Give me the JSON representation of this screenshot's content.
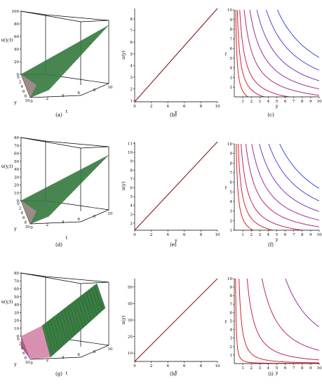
{
  "chart_data": [
    {
      "panel": "(a)",
      "type": "surface3d",
      "zlabel": "u(y,t)",
      "xlabel": "y",
      "ylabel": "t",
      "ticks": {
        "u": [
          0,
          20,
          40,
          60,
          80,
          100
        ],
        "y": [
          0,
          2,
          4,
          6,
          8,
          10
        ],
        "t": [
          0,
          2,
          4,
          6,
          8,
          10
        ]
      },
      "colors": {
        "mesh_dark": "#2a2a2a",
        "mesh_light": "#c8a0a0",
        "fill_green": "#3b8a46",
        "fill_pink": "#d890b0"
      }
    },
    {
      "panel": "(b)",
      "type": "line",
      "xlabel": "y",
      "ylabel": "u(y)",
      "xlim": [
        0,
        10
      ],
      "ylim": [
        0.9,
        8.9
      ],
      "xticks": [
        0,
        2,
        4,
        6,
        8,
        10
      ],
      "yticks": [
        1,
        2,
        3,
        4,
        5,
        6,
        7,
        8
      ],
      "x": [
        0,
        10
      ],
      "y": [
        0.9,
        8.9
      ],
      "color": "#8b1a1a"
    },
    {
      "panel": "(c)",
      "type": "contour",
      "xlabel": "y",
      "ylabel": "t",
      "xlim": [
        0,
        10
      ],
      "ylim": [
        1,
        10
      ],
      "xticks": [
        1,
        2,
        3,
        4,
        5,
        6,
        7,
        8,
        9,
        10
      ],
      "yticks": [
        2,
        3,
        4,
        5,
        6,
        7,
        8,
        9,
        10
      ],
      "levels": [
        1.6,
        3.5,
        6.4,
        11.6,
        18.2,
        26.6,
        37.5,
        50.7
      ],
      "power": 1,
      "colors": [
        "#e81c1c",
        "#d91d3c",
        "#c8205c",
        "#b4287d",
        "#9a2fa0",
        "#7e37bd",
        "#6040d4",
        "#3a4ae6"
      ]
    },
    {
      "panel": "(d)",
      "type": "surface3d",
      "zlabel": "u(y,t)",
      "xlabel": "y",
      "ylabel": "t",
      "ticks": {
        "u": [
          0,
          10,
          20,
          30,
          40,
          50,
          60,
          70,
          80
        ],
        "y": [
          0,
          2,
          4,
          6,
          8,
          10
        ],
        "t": [
          0,
          2,
          4,
          6,
          8,
          10
        ]
      },
      "colors": {
        "mesh_dark": "#2a2a2a",
        "mesh_light": "#c8a0a0",
        "fill_green": "#3b8a46",
        "fill_pink": "#d890b0"
      }
    },
    {
      "panel": "(e)",
      "type": "line",
      "xlabel": "y",
      "ylabel": "u(y)",
      "xlim": [
        0,
        10
      ],
      "ylim": [
        1.2,
        11.2
      ],
      "xticks": [
        0,
        2,
        4,
        6,
        8,
        10
      ],
      "yticks": [
        2,
        3,
        4,
        5,
        6,
        7,
        8,
        9,
        10,
        11
      ],
      "x": [
        0,
        10
      ],
      "y": [
        1.2,
        11.2
      ],
      "color": "#8b1a1a"
    },
    {
      "panel": "(f)",
      "type": "contour",
      "xlabel": "y",
      "ylabel": "t",
      "xlim": [
        0,
        10
      ],
      "ylim": [
        1,
        10
      ],
      "xticks": [
        1,
        2,
        3,
        4,
        5,
        6,
        7,
        8,
        9,
        10
      ],
      "yticks": [
        1,
        2,
        3,
        4,
        5,
        6,
        7,
        8,
        9,
        10
      ],
      "levels": [
        2.2,
        4.5,
        8,
        13.5,
        20.5,
        29.5,
        40.5,
        53.5
      ],
      "power": 1,
      "colors": [
        "#e81c1c",
        "#d91d3c",
        "#c8205c",
        "#b4287d",
        "#9a2fa0",
        "#7e37bd",
        "#6040d4",
        "#3a4ae6"
      ]
    },
    {
      "panel": "(g)",
      "type": "surface3d",
      "zlabel": "u(y,t)",
      "xlabel": "y",
      "ylabel": "t",
      "ticks": {
        "u": [
          0,
          10,
          20,
          30,
          40,
          50,
          60,
          70,
          80
        ],
        "y": [
          0,
          2,
          4,
          6,
          8,
          10
        ],
        "t": [
          0,
          2,
          4,
          6,
          8,
          10
        ]
      },
      "colors": {
        "mesh_dark": "#2a2a2a",
        "mesh_light": "#c8a0a0",
        "fill_green": "#3b8a46",
        "fill_pink": "#d890b0"
      }
    },
    {
      "panel": "(h)",
      "type": "line",
      "xlabel": "y",
      "ylabel": "u(y)",
      "xlim": [
        0,
        10
      ],
      "ylim": [
        5,
        55
      ],
      "xticks": [
        0,
        2,
        4,
        6,
        8,
        10
      ],
      "yticks": [
        10,
        20,
        30,
        40,
        50
      ],
      "x": [
        0,
        10
      ],
      "y": [
        5,
        55
      ],
      "color": "#8b1a1a"
    },
    {
      "panel": "(i)",
      "type": "contour",
      "xlabel": "y",
      "ylabel": "t",
      "xlim": [
        0,
        10
      ],
      "ylim": [
        0,
        10
      ],
      "xticks": [
        1,
        2,
        3,
        4,
        5,
        6,
        7,
        8,
        9,
        10
      ],
      "yticks": [
        1,
        2,
        3,
        4,
        5,
        6,
        7,
        8,
        9,
        10
      ],
      "levels": [
        0.55,
        2.2,
        6,
        13,
        24,
        40,
        60,
        85
      ],
      "power": 0.6,
      "colors": [
        "#e81c1c",
        "#d91d3c",
        "#c8205c",
        "#b4287d",
        "#9a2fa0",
        "#7e37bd",
        "#6040d4",
        "#3a4ae6"
      ]
    }
  ]
}
